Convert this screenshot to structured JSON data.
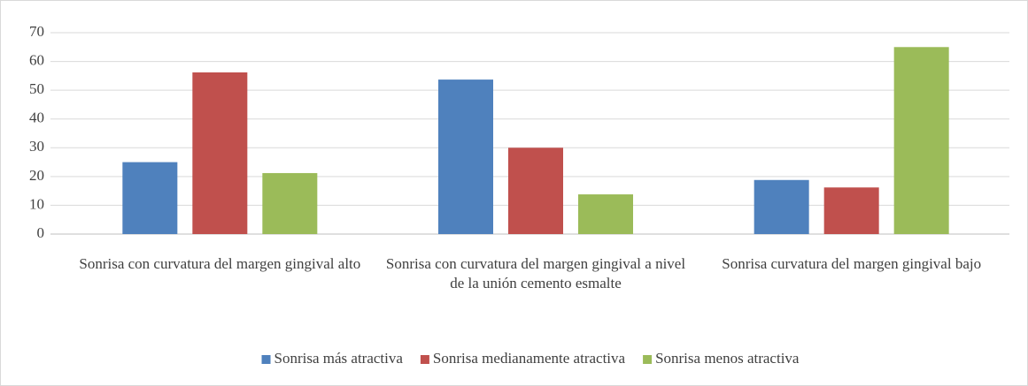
{
  "chart_data": {
    "type": "bar",
    "categories": [
      "Sonrisa con curvatura del margen gingival alto",
      "Sonrisa con curvatura del margen gingival a nivel de la unión cemento esmalte",
      "Sonrisa curvatura del margen gingival bajo"
    ],
    "series": [
      {
        "name": "Sonrisa más atractiva",
        "color": "#4f81bd",
        "values": [
          25,
          53.7,
          18.8
        ]
      },
      {
        "name": "Sonrisa medianamente atractiva",
        "color": "#c0504d",
        "values": [
          56.2,
          30,
          16.2
        ]
      },
      {
        "name": "Sonrisa menos atractiva",
        "color": "#9bbb59",
        "values": [
          21.2,
          13.8,
          65
        ]
      }
    ],
    "ylim": [
      0,
      70
    ],
    "yticks": [
      0,
      10,
      20,
      30,
      40,
      50,
      60,
      70
    ],
    "grid": true,
    "legend": "bottom"
  }
}
